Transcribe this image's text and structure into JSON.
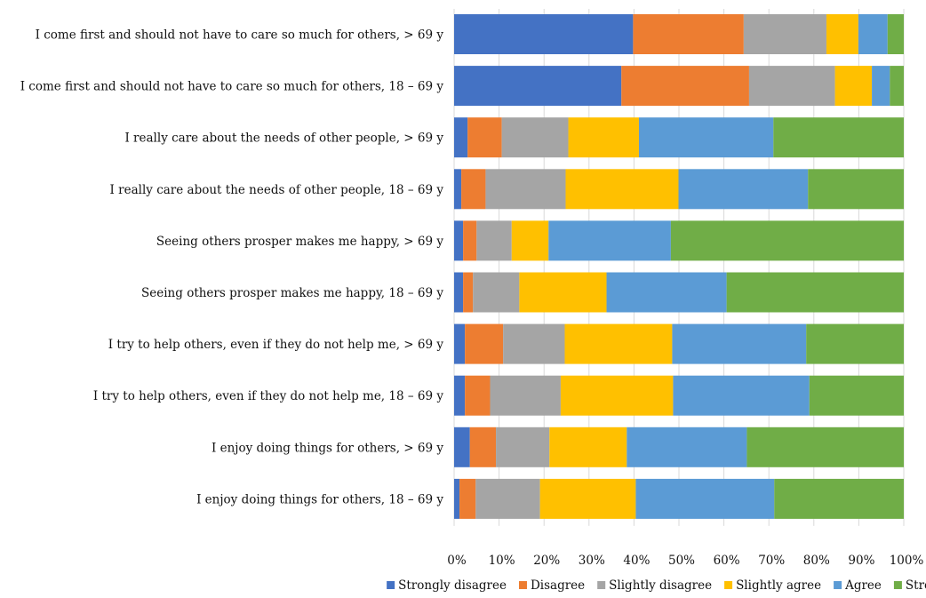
{
  "chart_data": {
    "type": "bar",
    "orientation": "horizontal",
    "stacked": true,
    "normalized": true,
    "title": "",
    "xlabel": "",
    "ylabel": "",
    "xlim": [
      0,
      100
    ],
    "x_ticks": [
      "0%",
      "10%",
      "20%",
      "30%",
      "40%",
      "50%",
      "60%",
      "70%",
      "80%",
      "90%",
      "100%"
    ],
    "grid": true,
    "legend_position": "bottom",
    "categories": [
      "I come first and should not have to care so much for others, > 69 y",
      "I come first and should not have to care so much for others, 18 – 69 y",
      "I really care about the needs of other people, > 69 y",
      "I really care about the needs of other people, 18 – 69 y",
      "Seeing others prosper makes me happy, > 69 y",
      "Seeing others prosper makes me happy, 18 – 69 y",
      "I try to help others, even if they do not help me, > 69 y",
      "I try to help others, even if they do not help me, 18 – 69 y",
      "I enjoy doing things for others, > 69 y",
      "I enjoy doing things for others, 18 – 69 y"
    ],
    "series": [
      {
        "name": "Strongly disagree",
        "color": "#4472C4",
        "values": [
          39.8,
          37.2,
          3.0,
          1.6,
          2.0,
          2.0,
          2.4,
          2.4,
          3.5,
          1.2
        ]
      },
      {
        "name": "Disagree",
        "color": "#ED7D31",
        "values": [
          24.6,
          28.4,
          7.6,
          5.4,
          3.0,
          2.2,
          8.5,
          5.6,
          5.8,
          3.6
        ]
      },
      {
        "name": "Slightly disagree",
        "color": "#A5A5A5",
        "values": [
          18.4,
          19.1,
          14.8,
          17.8,
          7.8,
          10.3,
          13.7,
          15.7,
          11.9,
          14.3
        ]
      },
      {
        "name": "Slightly agree",
        "color": "#FFC000",
        "values": [
          7.1,
          8.2,
          15.7,
          25.1,
          8.2,
          19.4,
          23.9,
          25.0,
          17.2,
          21.3
        ]
      },
      {
        "name": "Agree",
        "color": "#5B9BD5",
        "values": [
          6.5,
          4.0,
          29.9,
          28.8,
          27.2,
          26.7,
          29.8,
          30.3,
          26.7,
          30.8
        ]
      },
      {
        "name": "Strongly agree",
        "color": "#70AD47",
        "values": [
          3.6,
          3.1,
          29.0,
          21.3,
          51.8,
          39.4,
          21.7,
          21.0,
          34.9,
          28.8
        ]
      }
    ]
  }
}
